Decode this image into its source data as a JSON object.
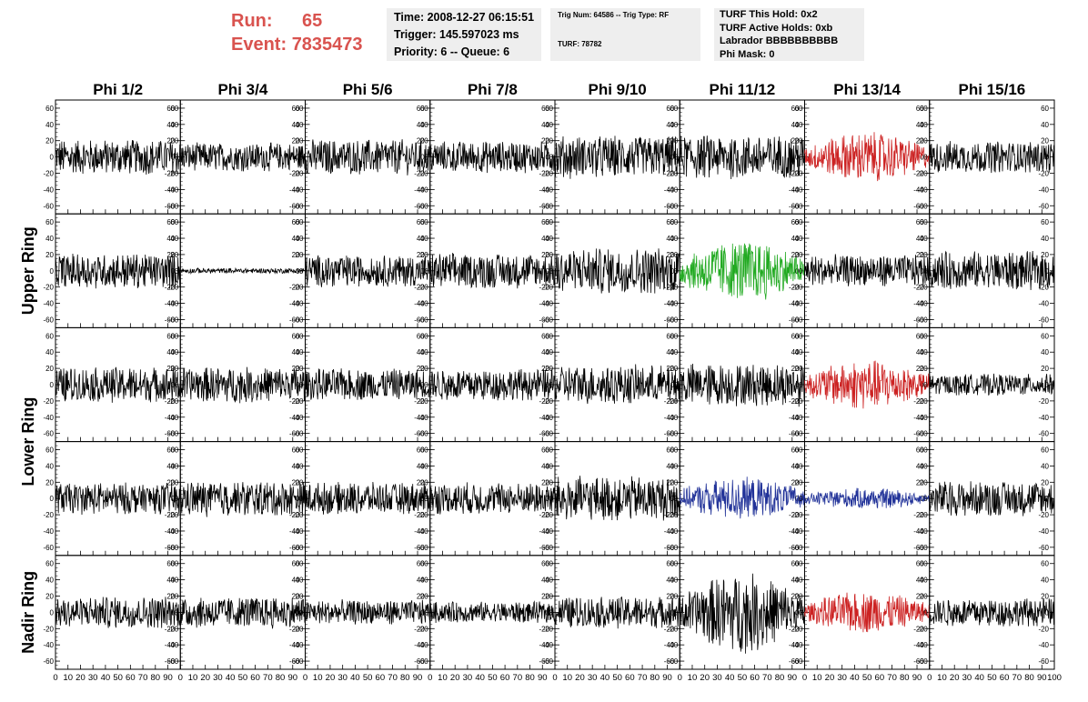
{
  "header": {
    "run_label": "Run:",
    "run_value": "65",
    "event_label": "Event:",
    "event_value": "7835473"
  },
  "info_box_1": {
    "time": "Time: 2008-12-27 06:15:51",
    "trigger": "Trigger: 145.597023 ms",
    "priority": "Priority: 6 -- Queue: 6"
  },
  "info_box_2": {
    "trig": "Trig Num: 64586 -- Trig Type: RF",
    "turf": "TURF: 78782"
  },
  "info_box_3": {
    "hold": "TURF This Hold: 0x2",
    "active": "TURF Active Holds: 0xb",
    "labrador": "Labrador BBBBBBBBBB",
    "phimask": "Phi Mask: 0"
  },
  "colors": {
    "black": "#000000",
    "red": "#cc2222",
    "green": "#22aa22",
    "blue": "#223399"
  },
  "chart_data": {
    "type": "line",
    "columns": [
      "Phi 1/2",
      "Phi 3/4",
      "Phi 5/6",
      "Phi 7/8",
      "Phi 9/10",
      "Phi 11/12",
      "Phi 13/14",
      "Phi 15/16"
    ],
    "row_labels": [
      "Upper Ring",
      "Lower Ring",
      "Nadir Ring"
    ],
    "x_ticks": [
      0,
      10,
      20,
      30,
      40,
      50,
      60,
      70,
      80,
      90,
      100
    ],
    "y_ticks": [
      -60,
      -40,
      -20,
      0,
      20,
      40,
      60
    ],
    "xlim": [
      0,
      100
    ],
    "ylim": [
      -70,
      70
    ],
    "grid": false,
    "panels": [
      [
        {
          "amp": 20,
          "color": "black"
        },
        {
          "amp": 16,
          "color": "black"
        },
        {
          "amp": 20,
          "color": "black"
        },
        {
          "amp": 18,
          "color": "black"
        },
        {
          "amp": 24,
          "color": "black"
        },
        {
          "amp": 25,
          "color": "black"
        },
        {
          "amp": 24,
          "color": "red"
        },
        {
          "amp": 18,
          "color": "black"
        }
      ],
      [
        {
          "amp": 20,
          "color": "black"
        },
        {
          "amp": 3,
          "color": "black"
        },
        {
          "amp": 18,
          "color": "black"
        },
        {
          "amp": 20,
          "color": "black"
        },
        {
          "amp": 26,
          "color": "black"
        },
        {
          "amp": 30,
          "color": "green"
        },
        {
          "amp": 18,
          "color": "black"
        },
        {
          "amp": 22,
          "color": "black"
        }
      ],
      [
        {
          "amp": 20,
          "color": "black"
        },
        {
          "amp": 20,
          "color": "black"
        },
        {
          "amp": 18,
          "color": "black"
        },
        {
          "amp": 18,
          "color": "black"
        },
        {
          "amp": 22,
          "color": "black"
        },
        {
          "amp": 24,
          "color": "black"
        },
        {
          "amp": 24,
          "color": "red"
        },
        {
          "amp": 12,
          "color": "black"
        }
      ],
      [
        {
          "amp": 18,
          "color": "black"
        },
        {
          "amp": 20,
          "color": "black"
        },
        {
          "amp": 18,
          "color": "black"
        },
        {
          "amp": 18,
          "color": "black"
        },
        {
          "amp": 25,
          "color": "black"
        },
        {
          "amp": 20,
          "color": "blue"
        },
        {
          "amp": 10,
          "color": "blue"
        },
        {
          "amp": 20,
          "color": "black"
        }
      ],
      [
        {
          "amp": 18,
          "color": "black"
        },
        {
          "amp": 18,
          "color": "black"
        },
        {
          "amp": 14,
          "color": "black"
        },
        {
          "amp": 12,
          "color": "black"
        },
        {
          "amp": 18,
          "color": "black"
        },
        {
          "amp": 38,
          "color": "black"
        },
        {
          "amp": 20,
          "color": "red"
        },
        {
          "amp": 16,
          "color": "black"
        }
      ]
    ]
  }
}
